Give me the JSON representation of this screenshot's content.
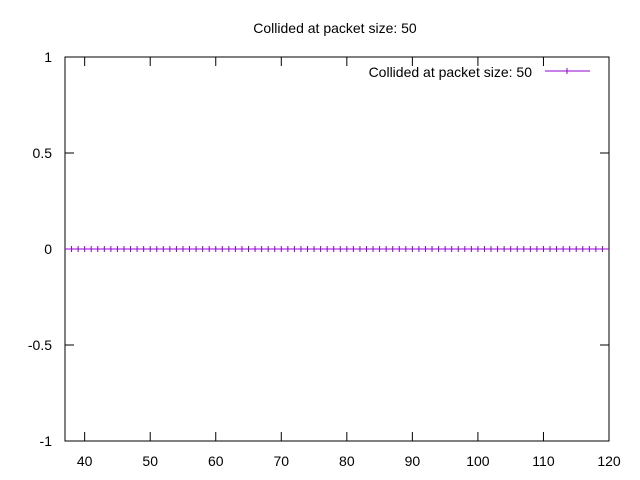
{
  "chart_data": {
    "type": "line",
    "title": "Collided at packet size: 50",
    "xlabel": "",
    "ylabel": "",
    "xlim": [
      37,
      120
    ],
    "ylim": [
      -1,
      1
    ],
    "x_ticks": [
      40,
      50,
      60,
      70,
      80,
      90,
      100,
      110,
      120
    ],
    "x_tick_labels": [
      "40",
      "50",
      "60",
      "70",
      "80",
      "90",
      "100",
      "110",
      "120"
    ],
    "y_ticks": [
      1,
      0.5,
      0,
      -0.5,
      -1
    ],
    "y_tick_labels": [
      "1",
      "0.5",
      "0",
      "-0.5",
      "-1"
    ],
    "grid": false,
    "legend": {
      "placement": "top-right",
      "entries": [
        "Collided at packet size: 50"
      ]
    },
    "series": [
      {
        "name": "Collided at packet size: 50",
        "color": "#9400d3",
        "marker": "plus",
        "x": [
          38,
          39,
          40,
          41,
          42,
          43,
          44,
          45,
          46,
          47,
          48,
          49,
          50,
          51,
          52,
          53,
          54,
          55,
          56,
          57,
          58,
          59,
          60,
          61,
          62,
          63,
          64,
          65,
          66,
          67,
          68,
          69,
          70,
          71,
          72,
          73,
          74,
          75,
          76,
          77,
          78,
          79,
          80,
          81,
          82,
          83,
          84,
          85,
          86,
          87,
          88,
          89,
          90,
          91,
          92,
          93,
          94,
          95,
          96,
          97,
          98,
          99,
          100,
          101,
          102,
          103,
          104,
          105,
          106,
          107,
          108,
          109,
          110,
          111,
          112,
          113,
          114,
          115,
          116,
          117,
          118,
          119
        ],
        "y": [
          0,
          0,
          0,
          0,
          0,
          0,
          0,
          0,
          0,
          0,
          0,
          0,
          0,
          0,
          0,
          0,
          0,
          0,
          0,
          0,
          0,
          0,
          0,
          0,
          0,
          0,
          0,
          0,
          0,
          0,
          0,
          0,
          0,
          0,
          0,
          0,
          0,
          0,
          0,
          0,
          0,
          0,
          0,
          0,
          0,
          0,
          0,
          0,
          0,
          0,
          0,
          0,
          0,
          0,
          0,
          0,
          0,
          0,
          0,
          0,
          0,
          0,
          0,
          0,
          0,
          0,
          0,
          0,
          0,
          0,
          0,
          0,
          0,
          0,
          0,
          0,
          0,
          0,
          0,
          0,
          0,
          0
        ]
      }
    ]
  }
}
